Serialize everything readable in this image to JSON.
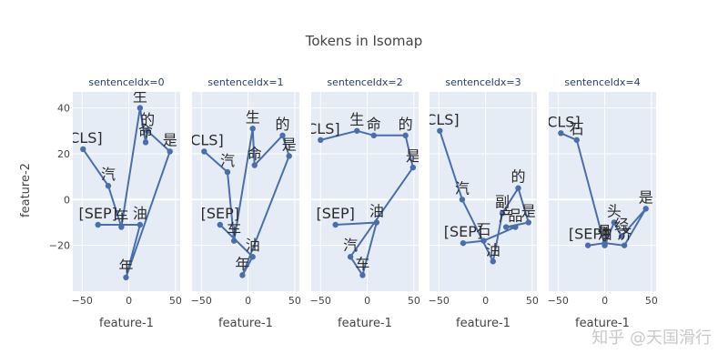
{
  "chart_data": {
    "type": "line",
    "title": "Tokens in Isomap",
    "xlabel": "feature-1",
    "ylabel": "feature-2",
    "xlim": [
      -60,
      55
    ],
    "ylim": [
      -40,
      47
    ],
    "xticks": [
      -50,
      0,
      50
    ],
    "yticks": [
      40,
      20,
      0,
      -20
    ],
    "grid": true,
    "series_color": "#4a6ea9",
    "facets": [
      {
        "title": "sentenceIdx=0",
        "points": [
          {
            "label": "[CLS]",
            "x": -49,
            "y": 22
          },
          {
            "label": "汽",
            "x": -22,
            "y": 6
          },
          {
            "label": "车",
            "x": -8,
            "y": -12
          },
          {
            "label": "生",
            "x": 12,
            "y": 40
          },
          {
            "label": "命",
            "x": 18,
            "y": 25
          },
          {
            "label": "的",
            "x": 20,
            "y": 30
          },
          {
            "label": "是",
            "x": 44,
            "y": 21
          },
          {
            "label": "年",
            "x": -3,
            "y": -34
          },
          {
            "label": "油",
            "x": 12,
            "y": -11
          },
          {
            "label": "[SEP]",
            "x": -33,
            "y": -11
          }
        ]
      },
      {
        "title": "sentenceIdx=1",
        "points": [
          {
            "label": "[CLS]",
            "x": -47,
            "y": 21
          },
          {
            "label": "汽",
            "x": -22,
            "y": 12
          },
          {
            "label": "车",
            "x": -15,
            "y": -18
          },
          {
            "label": "生",
            "x": 5,
            "y": 31
          },
          {
            "label": "命",
            "x": 7,
            "y": 15
          },
          {
            "label": "的",
            "x": 37,
            "y": 28
          },
          {
            "label": "是",
            "x": 44,
            "y": 19
          },
          {
            "label": "年",
            "x": -6,
            "y": -33
          },
          {
            "label": "油",
            "x": 5,
            "y": -25
          },
          {
            "label": "[SEP]",
            "x": -30,
            "y": -11
          }
        ]
      },
      {
        "title": "sentenceIdx=2",
        "points": [
          {
            "label": "[CLS]",
            "x": -50,
            "y": 26
          },
          {
            "label": "生",
            "x": -11,
            "y": 30
          },
          {
            "label": "命",
            "x": 7,
            "y": 28
          },
          {
            "label": "的",
            "x": 41,
            "y": 28
          },
          {
            "label": "是",
            "x": 49,
            "y": 14
          },
          {
            "label": "汽",
            "x": -18,
            "y": -25
          },
          {
            "label": "车",
            "x": -5,
            "y": -33
          },
          {
            "label": "油",
            "x": 10,
            "y": -10
          },
          {
            "label": "[SEP]",
            "x": -34,
            "y": -11
          }
        ]
      },
      {
        "title": "sentenceIdx=3",
        "points": [
          {
            "label": "[CLS]",
            "x": -49,
            "y": 30
          },
          {
            "label": "汽",
            "x": -25,
            "y": 0
          },
          {
            "label": "油",
            "x": 8,
            "y": -27
          },
          {
            "label": "副",
            "x": 18,
            "y": -6
          },
          {
            "label": "的",
            "x": 35,
            "y": 5
          },
          {
            "label": "是",
            "x": 46,
            "y": -10
          },
          {
            "label": "产",
            "x": 22,
            "y": -12
          },
          {
            "label": "品",
            "x": 32,
            "y": -12
          },
          {
            "label": "石",
            "x": -2,
            "y": -18
          },
          {
            "label": "[SEP]",
            "x": -24,
            "y": -19
          }
        ]
      },
      {
        "title": "sentenceIdx=4",
        "points": [
          {
            "label": "[CLS]",
            "x": -47,
            "y": 29
          },
          {
            "label": "石",
            "x": -30,
            "y": 26
          },
          {
            "label": "油",
            "x": 0,
            "y": -20
          },
          {
            "label": "头",
            "x": 10,
            "y": -10
          },
          {
            "label": "经",
            "x": 18,
            "y": -16
          },
          {
            "label": "是",
            "x": 44,
            "y": -4
          },
          {
            "label": "济",
            "x": 21,
            "y": -20
          },
          {
            "label": "骨",
            "x": 0,
            "y": -19
          },
          {
            "label": "[SEP]",
            "x": -18,
            "y": -20
          }
        ]
      }
    ]
  },
  "watermark": "知乎 @天国滑行"
}
